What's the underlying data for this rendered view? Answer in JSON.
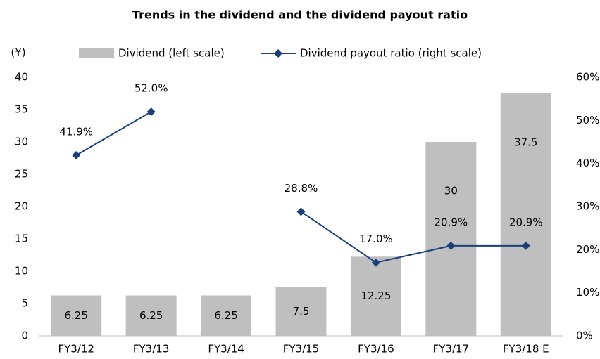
{
  "chart_data": {
    "type": "bar",
    "title": "Trends in the dividend and the dividend payout ratio",
    "ylabel": "(¥)",
    "categories": [
      "FY3/12",
      "FY3/13",
      "FY3/14",
      "FY3/15",
      "FY3/16",
      "FY3/17",
      "FY3/18 E"
    ],
    "series": [
      {
        "name": "Dividend (left scale)",
        "type": "bar",
        "color": "#bfbfbf",
        "values": [
          6.25,
          6.25,
          6.25,
          7.5,
          12.25,
          30,
          37.5
        ]
      },
      {
        "name": "Dividend payout ratio (right scale)",
        "type": "line",
        "axis": "y2",
        "color": "#1b3f7a",
        "values": [
          41.9,
          52.0,
          null,
          28.8,
          17.0,
          20.9,
          20.9
        ],
        "value_labels": [
          "41.9%",
          "52.0%",
          null,
          "28.8%",
          "17.0%",
          "20.9%",
          "20.9%"
        ]
      }
    ],
    "ylim": [
      0,
      40
    ],
    "yticks": [
      0,
      5,
      10,
      15,
      20,
      25,
      30,
      35,
      40
    ],
    "y2lim": [
      0,
      60
    ],
    "y2ticks": [
      {
        "value": 0,
        "label": "0%"
      },
      {
        "value": 10,
        "label": "10%"
      },
      {
        "value": 20,
        "label": "20%"
      },
      {
        "value": 30,
        "label": "30%"
      },
      {
        "value": 40,
        "label": "40%"
      },
      {
        "value": 50,
        "label": "50%"
      },
      {
        "value": 60,
        "label": "60%"
      }
    ],
    "grid": false,
    "legend": "top"
  }
}
